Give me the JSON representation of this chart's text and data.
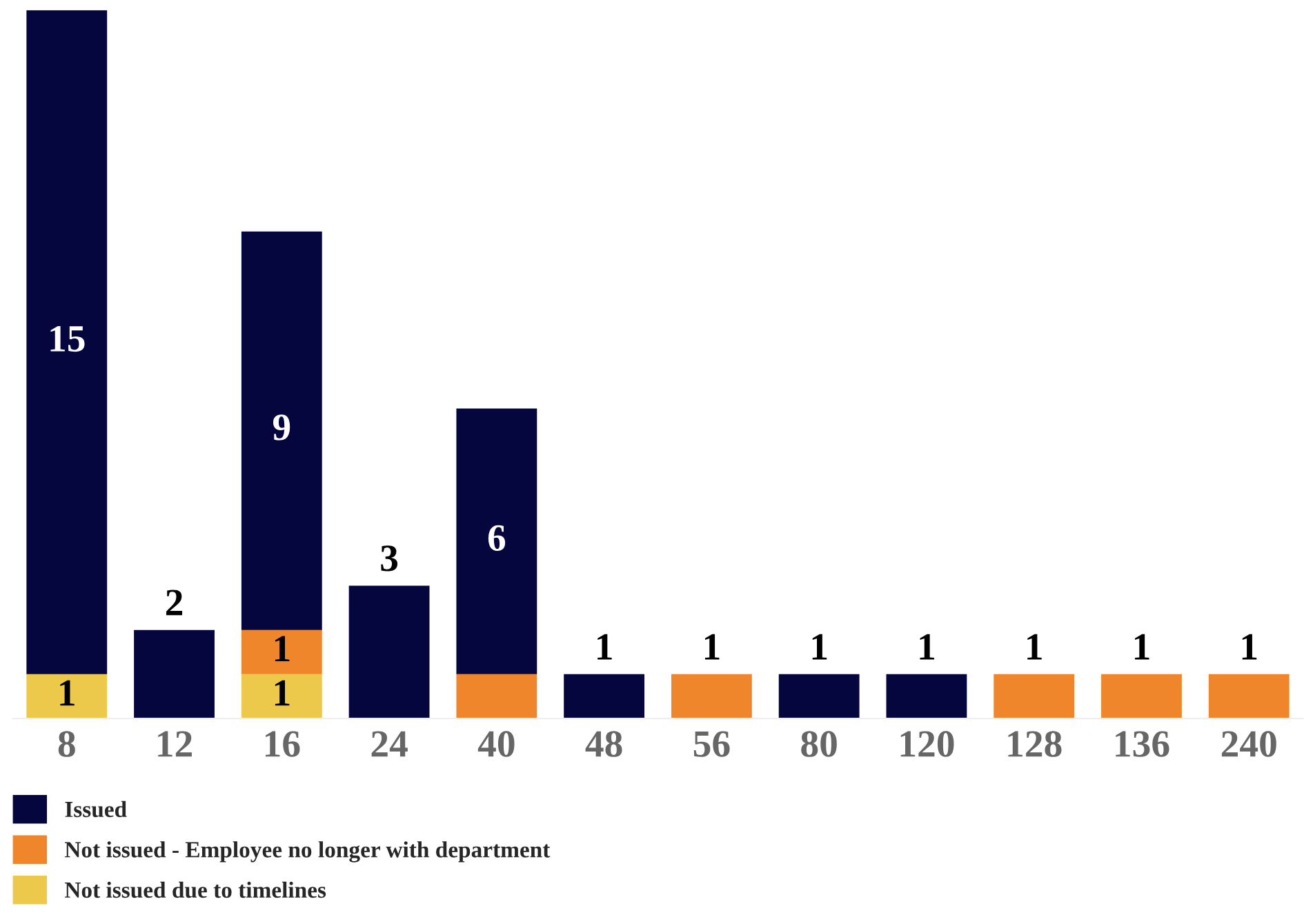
{
  "chart_data": {
    "type": "bar",
    "stacked": true,
    "categories": [
      "8",
      "12",
      "16",
      "24",
      "40",
      "48",
      "56",
      "80",
      "120",
      "128",
      "136",
      "240"
    ],
    "series": [
      {
        "name": "Not issued due to timelines",
        "color": "#ecc94b",
        "values": [
          1,
          null,
          1,
          null,
          null,
          null,
          null,
          null,
          null,
          null,
          null,
          null
        ],
        "value_labels": [
          "1",
          null,
          "1",
          null,
          null,
          null,
          null,
          null,
          null,
          null,
          null,
          null
        ]
      },
      {
        "name": "Not issued - Employee no longer with department",
        "color": "#f0862b",
        "values": [
          null,
          null,
          1,
          null,
          1,
          null,
          1,
          null,
          null,
          1,
          1,
          1
        ],
        "value_labels": [
          null,
          null,
          "1",
          null,
          null,
          null,
          "1",
          null,
          null,
          "1",
          "1",
          "1"
        ]
      },
      {
        "name": "Issued",
        "color": "#06063f",
        "values": [
          15,
          2,
          9,
          3,
          6,
          1,
          null,
          1,
          1,
          null,
          null,
          null
        ],
        "value_labels": [
          "15",
          "2",
          "9",
          "3",
          "6",
          "1",
          null,
          "1",
          "1",
          null,
          null,
          null
        ]
      }
    ],
    "legend": "bottom left",
    "grid": false
  }
}
